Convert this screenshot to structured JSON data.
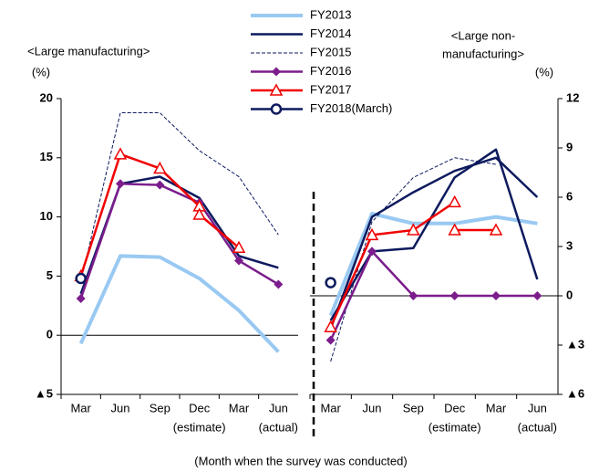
{
  "chart_data": [
    {
      "type": "line",
      "panel_label": "<Large manufacturing>",
      "y_unit": "(%)",
      "categories": [
        "Mar",
        "Jun",
        "Sep",
        "Dec",
        "Mar",
        "Jun"
      ],
      "category_sublabels": [
        null,
        null,
        null,
        "(estimate)",
        null,
        "(actual)"
      ],
      "ylim": [
        -5,
        20
      ],
      "yticks": [
        {
          "value": -5,
          "label": "▲5"
        },
        0,
        5,
        10,
        15,
        20
      ],
      "y_side": "left",
      "zero_line": true,
      "series": [
        {
          "name": "FY2013",
          "color": "#99c9f2",
          "width": 4,
          "values": [
            -0.7,
            6.7,
            6.6,
            4.8,
            2.1,
            -1.4
          ]
        },
        {
          "name": "FY2014",
          "color": "#0d1a5e",
          "width": 2.5,
          "values": [
            3.5,
            12.8,
            13.4,
            11.6,
            6.7,
            5.7
          ]
        },
        {
          "name": "FY2015",
          "color": "#0d1a5e",
          "width": 1,
          "dash": true,
          "values": [
            4.5,
            18.8,
            18.8,
            15.6,
            13.4,
            8.5
          ]
        },
        {
          "name": "FY2016",
          "color": "#7b1d8c",
          "width": 2.5,
          "marker": "diamond",
          "values": [
            3.1,
            12.8,
            12.7,
            11.2,
            6.3,
            4.3
          ]
        },
        {
          "name": "FY2017",
          "color": "#f00000",
          "width": 2.5,
          "marker": "triangle",
          "values": [
            5.0,
            15.3,
            14.1,
            10.9,
            null,
            null
          ]
        },
        {
          "color": "#f00000",
          "width": 2.5,
          "marker": "triangle",
          "values": [
            null,
            null,
            null,
            10.2,
            7.4,
            null
          ]
        },
        {
          "name": "FY2018(March)",
          "color": "#0d1a5e",
          "width": 2.5,
          "marker": "circle",
          "values": [
            4.8,
            null,
            null,
            null,
            null,
            null
          ]
        }
      ]
    },
    {
      "type": "line",
      "panel_label": [
        "<Large non-",
        "manufacturing>"
      ],
      "y_unit": "(%)",
      "categories": [
        "Mar",
        "Jun",
        "Sep",
        "Dec",
        "Mar",
        "Jun"
      ],
      "category_sublabels": [
        null,
        null,
        null,
        "(estimate)",
        null,
        "(actual)"
      ],
      "ylim": [
        -6,
        12
      ],
      "yticks": [
        {
          "value": -6,
          "label": "▲6"
        },
        {
          "value": -3,
          "label": "▲3"
        },
        0,
        3,
        6,
        9,
        12
      ],
      "y_side": "right",
      "zero_line": true,
      "series": [
        {
          "color": "#99c9f2",
          "width": 4,
          "values": [
            -1.2,
            5.0,
            4.4,
            4.4,
            4.8,
            4.4
          ]
        },
        {
          "color": "#0d1a5e",
          "width": 2.5,
          "values": [
            -2.0,
            4.8,
            6.3,
            7.6,
            8.4,
            6.0
          ]
        },
        {
          "color": "#0d1a5e",
          "width": 2.5,
          "values": [
            -1.5,
            2.7,
            2.9,
            7.2,
            8.9,
            1.0
          ]
        },
        {
          "color": "#0d1a5e",
          "width": 1,
          "dash": true,
          "values": [
            -4.0,
            4.5,
            7.2,
            8.4,
            8.0,
            null
          ]
        },
        {
          "color": "#7b1d8c",
          "width": 2.5,
          "marker": "diamond",
          "values": [
            -2.7,
            2.7,
            0,
            0,
            0,
            0
          ]
        },
        {
          "color": "#f00000",
          "width": 2.5,
          "marker": "triangle",
          "values": [
            -1.9,
            3.7,
            4.0,
            5.7,
            null,
            null
          ]
        },
        {
          "color": "#f00000",
          "width": 2.5,
          "marker": "triangle",
          "values": [
            null,
            null,
            null,
            4.0,
            4.0,
            null
          ]
        },
        {
          "color": "#0d1a5e",
          "width": 2.5,
          "marker": "circle",
          "values": [
            0.8,
            null,
            null,
            null,
            null,
            null
          ]
        }
      ]
    }
  ],
  "x_axis_label": "(Month when the survey was conducted)"
}
